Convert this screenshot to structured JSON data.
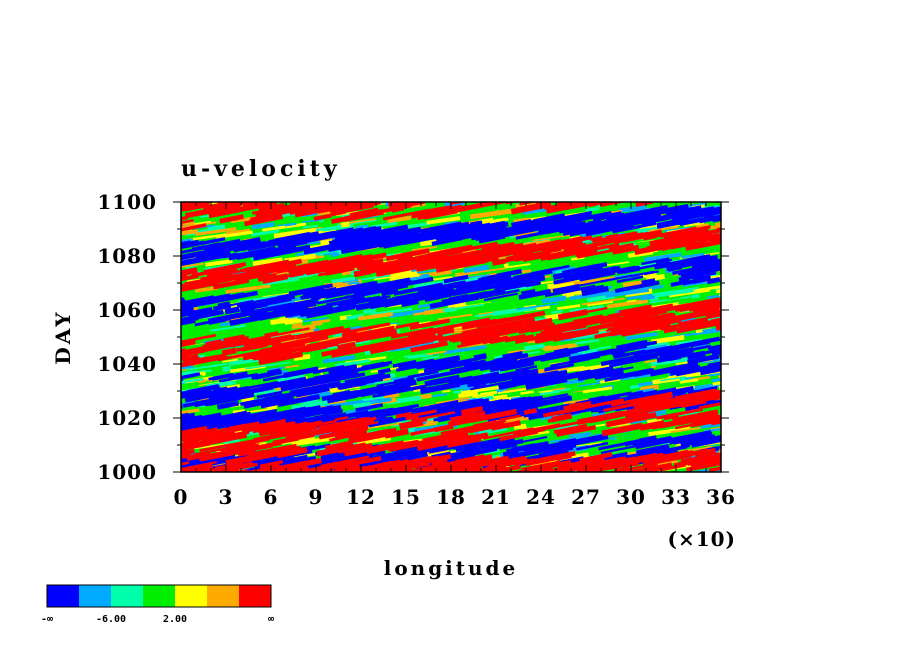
{
  "chart_data": {
    "type": "heatmap",
    "title": "u-velocity",
    "xlabel": "longitude",
    "ylabel": "DAY",
    "x_multiplier_label": "(×10)",
    "xlim": [
      0,
      36
    ],
    "ylim": [
      1000,
      1100
    ],
    "x_ticks": [
      "0",
      "3",
      "6",
      "9",
      "12",
      "15",
      "18",
      "21",
      "24",
      "27",
      "30",
      "33",
      "36"
    ],
    "y_ticks": [
      "1000",
      "1020",
      "1040",
      "1060",
      "1080",
      "1100"
    ],
    "colorbar": {
      "colors": [
        "#0000ff",
        "#00aaff",
        "#00ffaa",
        "#00ee00",
        "#ffff00",
        "#ffaa00",
        "#ff0000"
      ],
      "labels": [
        "-∞",
        "-6.00",
        "2.00",
        "∞"
      ]
    },
    "bands": [
      {
        "d0": 1082,
        "slope": 0.4,
        "color": "#0000ff"
      },
      {
        "d0": 1060,
        "slope": 0.45,
        "color": "#0000ff"
      },
      {
        "d0": 1030,
        "slope": 0.4,
        "color": "#0000ff"
      },
      {
        "d0": 1018,
        "slope": 0.3,
        "color": "#0000ff"
      },
      {
        "d0": 1003,
        "slope": 0.2,
        "color": "#0000ff"
      },
      {
        "d0": 1096,
        "slope": 0.35,
        "color": "#ff0000"
      },
      {
        "d0": 1072,
        "slope": 0.45,
        "color": "#ff0000"
      },
      {
        "d0": 1045,
        "slope": 0.4,
        "color": "#ff0000"
      },
      {
        "d0": 1010,
        "slope": 0.4,
        "color": "#ff0000"
      },
      {
        "d0": 1000,
        "slope": 0.15,
        "color": "#ff0000"
      }
    ]
  }
}
